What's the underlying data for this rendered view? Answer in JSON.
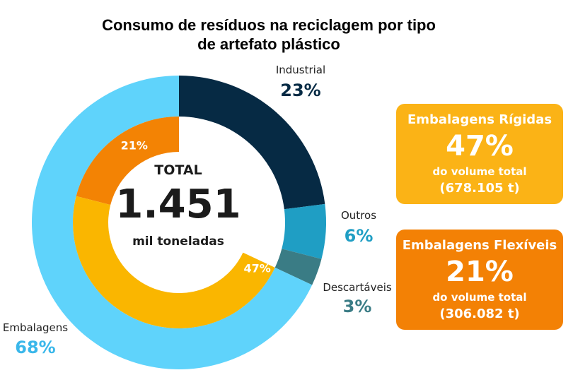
{
  "title_line1": "Consumo de resíduos na reciclagem por tipo",
  "title_line2": "de artefato plástico",
  "center": {
    "total_label": "TOTAL",
    "total_value": "1.451",
    "unit": "mil toneladas"
  },
  "outer_labels": {
    "industrial": {
      "name": "Industrial",
      "pct": "23%"
    },
    "outros": {
      "name": "Outros",
      "pct": "6%"
    },
    "descartaveis": {
      "name": "Descartáveis",
      "pct": "3%"
    },
    "embalagens": {
      "name": "Embalagens",
      "pct": "68%"
    }
  },
  "inner_labels": {
    "flexiveis": "21%",
    "rigidas": "47%"
  },
  "cards": {
    "rigidas": {
      "title": "Embalagens Rígidas",
      "pct": "47%",
      "sub": "do volume total",
      "value": "(678.105 t)"
    },
    "flexiveis": {
      "title": "Embalagens Flexíveis",
      "pct": "21%",
      "sub": "do volume total",
      "value": "(306.082 t)"
    }
  },
  "colors": {
    "industrial": "#062a44",
    "outros": "#1f9ec4",
    "descartaveis": "#3a7c85",
    "embalagens": "#5fd3fb",
    "rigidas": "#fab600",
    "flexiveis": "#f38304",
    "card_rigidas": "#fbb316",
    "card_flexiveis": "#f38105"
  },
  "chart_data": {
    "type": "pie",
    "title": "Consumo de resíduos na reciclagem por tipo de artefato plástico",
    "total": "1.451 mil toneladas",
    "rings": [
      {
        "name": "outer",
        "categories": [
          "Industrial",
          "Outros",
          "Descartáveis",
          "Embalagens"
        ],
        "values": [
          23,
          6,
          3,
          68
        ]
      },
      {
        "name": "inner",
        "categories": [
          "Embalagens Rígidas",
          "Embalagens Flexíveis"
        ],
        "values": [
          47,
          21
        ],
        "absolute_tonnes": [
          678105,
          306082
        ]
      }
    ]
  }
}
